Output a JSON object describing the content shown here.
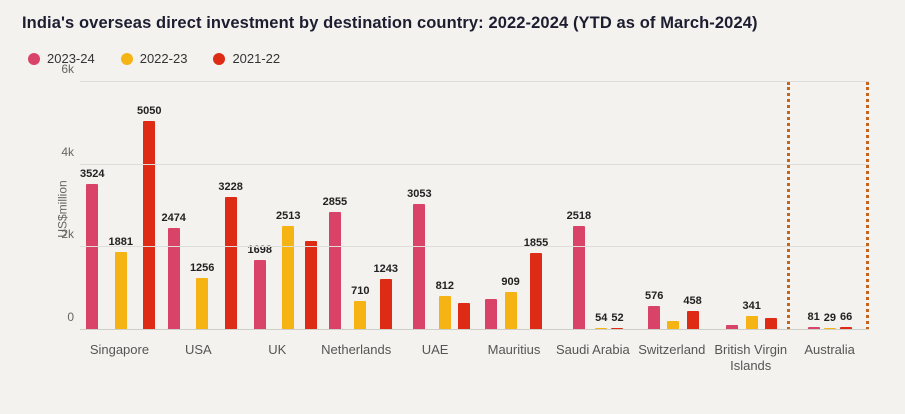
{
  "chart_data": {
    "type": "bar",
    "title": "India's overseas direct investment by destination country: 2022-2024 (YTD as of March-2024)",
    "ylabel": "US$million",
    "ylim": [
      0,
      6000
    ],
    "yticks": [
      {
        "label": "0",
        "value": 0
      },
      {
        "label": "2k",
        "value": 2000
      },
      {
        "label": "4k",
        "value": 4000
      },
      {
        "label": "6k",
        "value": 6000
      }
    ],
    "grid": true,
    "legend_position": "top-left",
    "categories": [
      "Singapore",
      "USA",
      "UK",
      "Netherlands",
      "UAE",
      "Mauritius",
      "Saudi Arabia",
      "Switzerland",
      "British Virgin Islands",
      "Australia"
    ],
    "series": [
      {
        "name": "2023-24",
        "color": "#d94368",
        "values": [
          3524,
          2474,
          1698,
          2855,
          3053,
          760,
          2518,
          576,
          130,
          81
        ],
        "labels": [
          "3524",
          "2474",
          "1698",
          "2855",
          "3053",
          "",
          "2518",
          "576",
          "",
          "81"
        ]
      },
      {
        "name": "2022-23",
        "color": "#f5b314",
        "values": [
          1881,
          1256,
          2513,
          710,
          812,
          909,
          54,
          230,
          341,
          29
        ],
        "labels": [
          "1881",
          "1256",
          "2513",
          "710",
          "812",
          "909",
          "54",
          "",
          "341",
          "29"
        ]
      },
      {
        "name": "2021-22",
        "color": "#dd2b15",
        "values": [
          5050,
          3228,
          2150,
          1243,
          660,
          1855,
          52,
          458,
          300,
          66
        ],
        "labels": [
          "5050",
          "3228",
          "",
          "1243",
          "",
          "1855",
          "52",
          "458",
          "",
          "66"
        ]
      }
    ],
    "annotations": {
      "highlight_region": "Australia",
      "divider_color": "#c4651b",
      "divider_style": "dotted vertical lines flanking the Australia group"
    }
  }
}
